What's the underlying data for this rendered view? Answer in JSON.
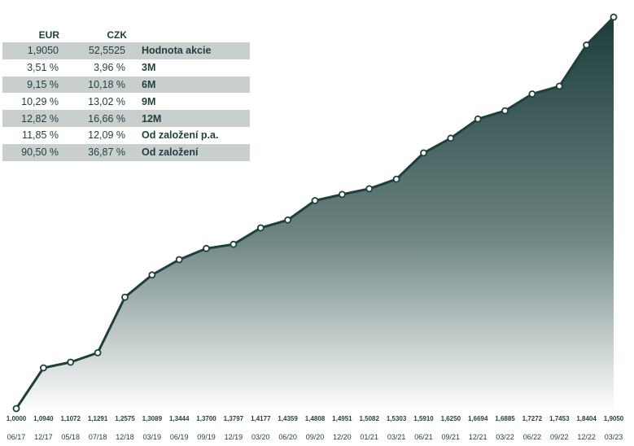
{
  "table": {
    "headers": [
      "EUR",
      "CZK",
      ""
    ],
    "rows": [
      {
        "eur": "1,9050",
        "czk": "52,5525",
        "label": "Hodnota akcie"
      },
      {
        "eur": "3,51 %",
        "czk": "3,96 %",
        "label": "3M"
      },
      {
        "eur": "9,15 %",
        "czk": "10,18 %",
        "label": "6M"
      },
      {
        "eur": "10,29 %",
        "czk": "13,02 %",
        "label": "9M"
      },
      {
        "eur": "12,82 %",
        "czk": "16,66 %",
        "label": "12M"
      },
      {
        "eur": "11,85 %",
        "czk": "12,09 %",
        "label": "Od založení p.a."
      },
      {
        "eur": "90,50 %",
        "czk": "36,87 %",
        "label": "Od založení"
      }
    ]
  },
  "chart_data": {
    "type": "area",
    "title": "",
    "xlabel": "",
    "ylabel": "",
    "ylim": [
      1.0,
      1.905
    ],
    "grid": false,
    "x": [
      "06/17",
      "12/17",
      "05/18",
      "07/18",
      "12/18",
      "03/19",
      "06/19",
      "09/19",
      "12/19",
      "03/20",
      "06/20",
      "09/20",
      "12/20",
      "01/21",
      "03/21",
      "06/21",
      "09/21",
      "12/21",
      "03/22",
      "06/22",
      "09/22",
      "12/22",
      "03/23"
    ],
    "value_labels": [
      "1,0000",
      "1,0940",
      "1,1072",
      "1,1291",
      "1,2575",
      "1,3089",
      "1,3444",
      "1,3700",
      "1,3797",
      "1,4177",
      "1,4359",
      "1,4808",
      "1,4951",
      "1,5082",
      "1,5303",
      "1,5910",
      "1,6250",
      "1,6694",
      "1,6885",
      "1,7272",
      "1,7453",
      "1,8404",
      "1,9050"
    ],
    "values": [
      1.0,
      1.094,
      1.1072,
      1.1291,
      1.2575,
      1.3089,
      1.3444,
      1.37,
      1.3797,
      1.4177,
      1.4359,
      1.4808,
      1.4951,
      1.5082,
      1.5303,
      1.591,
      1.625,
      1.6694,
      1.6885,
      1.7272,
      1.7453,
      1.8404,
      1.905
    ],
    "colors": {
      "line": "#1f3f3d",
      "fill_top": "#1c3c3a",
      "fill_bottom": "#ffffff",
      "text": "#1f3f3d"
    }
  }
}
